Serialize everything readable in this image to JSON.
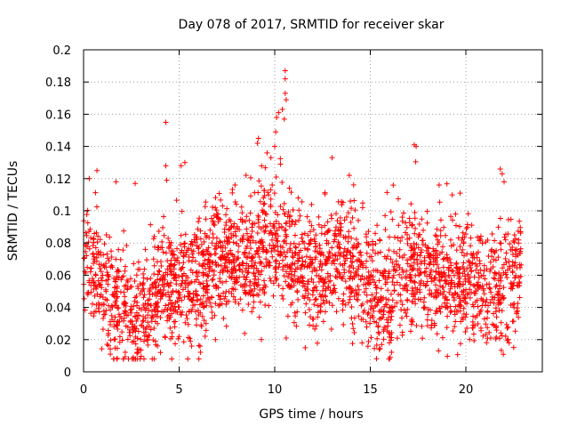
{
  "chart_data": {
    "type": "scatter",
    "title": "Day 078 of 2017, SRMTID for receiver skar",
    "xlabel": "GPS time / hours",
    "ylabel": "SRMTID / TECUs",
    "xlim": [
      0,
      24
    ],
    "ylim": [
      0,
      0.2
    ],
    "xticks": [
      0,
      5,
      10,
      15,
      20
    ],
    "xtick_labels": [
      "0",
      "5",
      "10",
      "15",
      "20"
    ],
    "yticks": [
      0,
      0.02,
      0.04,
      0.06,
      0.08,
      0.1,
      0.12,
      0.14,
      0.16,
      0.18,
      0.2
    ],
    "ytick_labels": [
      "0",
      "0.02",
      "0.04",
      "0.06",
      "0.08",
      "0.1",
      "0.12",
      "0.14",
      "0.16",
      "0.18",
      "0.2"
    ],
    "grid": true,
    "marker": "plus",
    "color": "#ff0000",
    "profile": [
      [
        0.0,
        0.06
      ],
      [
        0.5,
        0.068
      ],
      [
        1.0,
        0.055
      ],
      [
        1.5,
        0.048
      ],
      [
        2.0,
        0.042
      ],
      [
        2.5,
        0.035
      ],
      [
        3.0,
        0.037
      ],
      [
        3.5,
        0.043
      ],
      [
        4.0,
        0.05
      ],
      [
        4.5,
        0.054
      ],
      [
        5.0,
        0.055
      ],
      [
        5.5,
        0.052
      ],
      [
        6.0,
        0.055
      ],
      [
        6.5,
        0.062
      ],
      [
        7.0,
        0.068
      ],
      [
        7.5,
        0.07
      ],
      [
        8.0,
        0.07
      ],
      [
        8.5,
        0.068
      ],
      [
        9.0,
        0.07
      ],
      [
        9.5,
        0.075
      ],
      [
        10.0,
        0.078
      ],
      [
        10.5,
        0.076
      ],
      [
        11.0,
        0.07
      ],
      [
        11.5,
        0.064
      ],
      [
        12.0,
        0.06
      ],
      [
        12.5,
        0.058
      ],
      [
        13.0,
        0.064
      ],
      [
        13.5,
        0.07
      ],
      [
        14.0,
        0.068
      ],
      [
        14.5,
        0.06
      ],
      [
        15.0,
        0.048
      ],
      [
        15.5,
        0.042
      ],
      [
        16.0,
        0.048
      ],
      [
        16.5,
        0.06
      ],
      [
        17.0,
        0.064
      ],
      [
        17.5,
        0.062
      ],
      [
        18.0,
        0.062
      ],
      [
        18.5,
        0.06
      ],
      [
        19.0,
        0.058
      ],
      [
        19.5,
        0.056
      ],
      [
        20.0,
        0.055
      ],
      [
        20.5,
        0.052
      ],
      [
        21.0,
        0.05
      ],
      [
        21.5,
        0.05
      ],
      [
        22.0,
        0.054
      ],
      [
        22.5,
        0.058
      ],
      [
        22.9,
        0.065
      ]
    ],
    "spread": 0.018,
    "x_range_data": [
      0,
      22.9
    ],
    "n_points": 2600,
    "outliers": [
      [
        4.3,
        0.155
      ],
      [
        4.3,
        0.128
      ],
      [
        4.35,
        0.119
      ],
      [
        5.1,
        0.128
      ],
      [
        5.3,
        0.13
      ],
      [
        9.15,
        0.145
      ],
      [
        9.1,
        0.142
      ],
      [
        9.6,
        0.136
      ],
      [
        10.0,
        0.14
      ],
      [
        10.05,
        0.149
      ],
      [
        10.1,
        0.158
      ],
      [
        10.2,
        0.161
      ],
      [
        10.4,
        0.163
      ],
      [
        10.55,
        0.187
      ],
      [
        10.55,
        0.182
      ],
      [
        10.55,
        0.173
      ],
      [
        10.6,
        0.169
      ],
      [
        10.5,
        0.157
      ],
      [
        10.3,
        0.129
      ],
      [
        9.8,
        0.133
      ],
      [
        13.0,
        0.133
      ],
      [
        17.3,
        0.141
      ],
      [
        17.4,
        0.14
      ],
      [
        21.8,
        0.126
      ],
      [
        21.9,
        0.123
      ],
      [
        22.0,
        0.118
      ],
      [
        0.3,
        0.12
      ],
      [
        0.7,
        0.125
      ],
      [
        2.7,
        0.117
      ],
      [
        1.7,
        0.118
      ],
      [
        1.4,
        0.011
      ],
      [
        2.6,
        0.009
      ],
      [
        2.8,
        0.012
      ],
      [
        15.6,
        0.017
      ],
      [
        16.0,
        0.018
      ],
      [
        21.3,
        0.021
      ],
      [
        8.5,
        0.122
      ],
      [
        13.9,
        0.122
      ],
      [
        18.6,
        0.116
      ],
      [
        19.7,
        0.111
      ],
      [
        11.6,
        0.015
      ],
      [
        10.6,
        0.021
      ],
      [
        6.9,
        0.02
      ],
      [
        9.3,
        0.02
      ]
    ]
  }
}
